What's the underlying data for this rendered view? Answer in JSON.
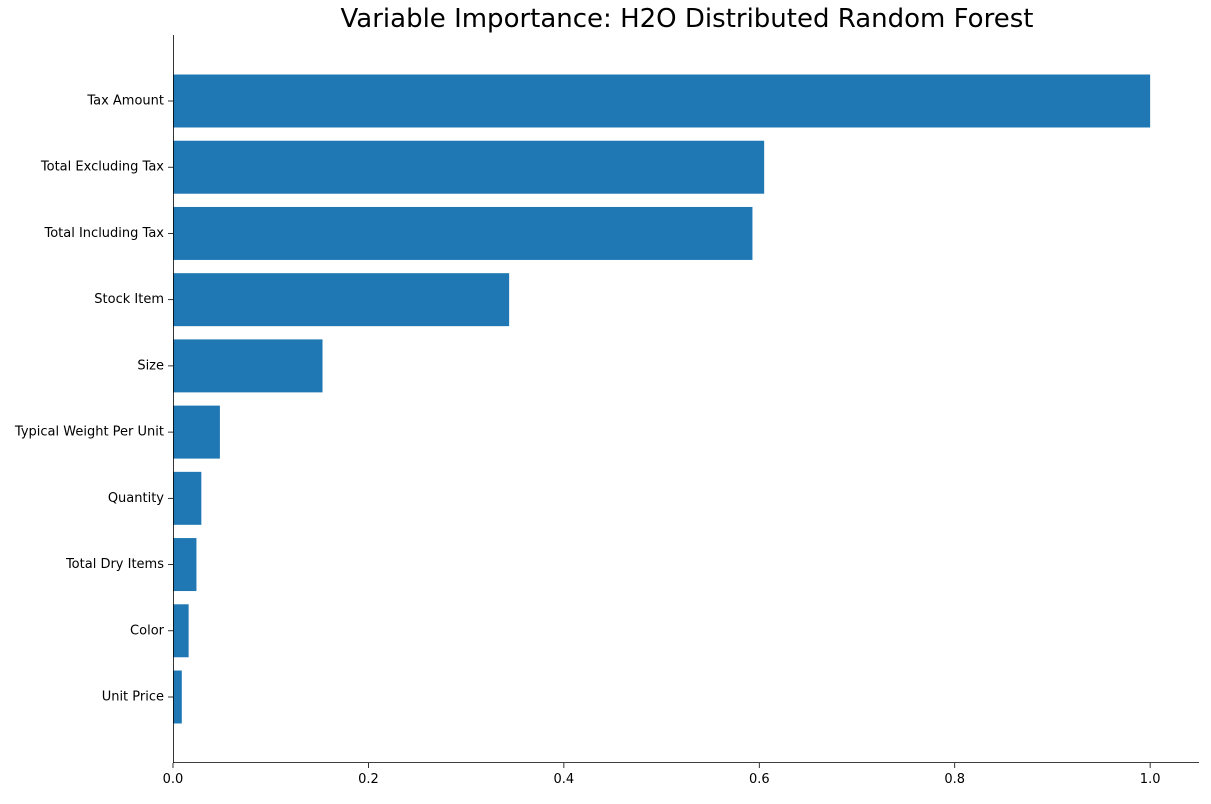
{
  "chart_data": {
    "type": "bar",
    "orientation": "horizontal",
    "title": "Variable Importance: H2O Distributed Random Forest",
    "xlabel": "",
    "ylabel": "",
    "categories": [
      "Tax Amount",
      "Total Excluding Tax",
      "Total Including Tax",
      "Stock Item",
      "Size",
      "Typical Weight Per Unit",
      "Quantity",
      "Total Dry Items",
      "Color",
      "Unit Price"
    ],
    "values": [
      1.0,
      0.605,
      0.593,
      0.344,
      0.153,
      0.048,
      0.029,
      0.024,
      0.016,
      0.009
    ],
    "xlim": [
      0,
      1.05
    ],
    "xticks": [
      "0.0",
      "0.2",
      "0.4",
      "0.6",
      "0.8",
      "1.0"
    ],
    "grid": false,
    "legend": "none",
    "bar_color": "#1f77b4"
  }
}
